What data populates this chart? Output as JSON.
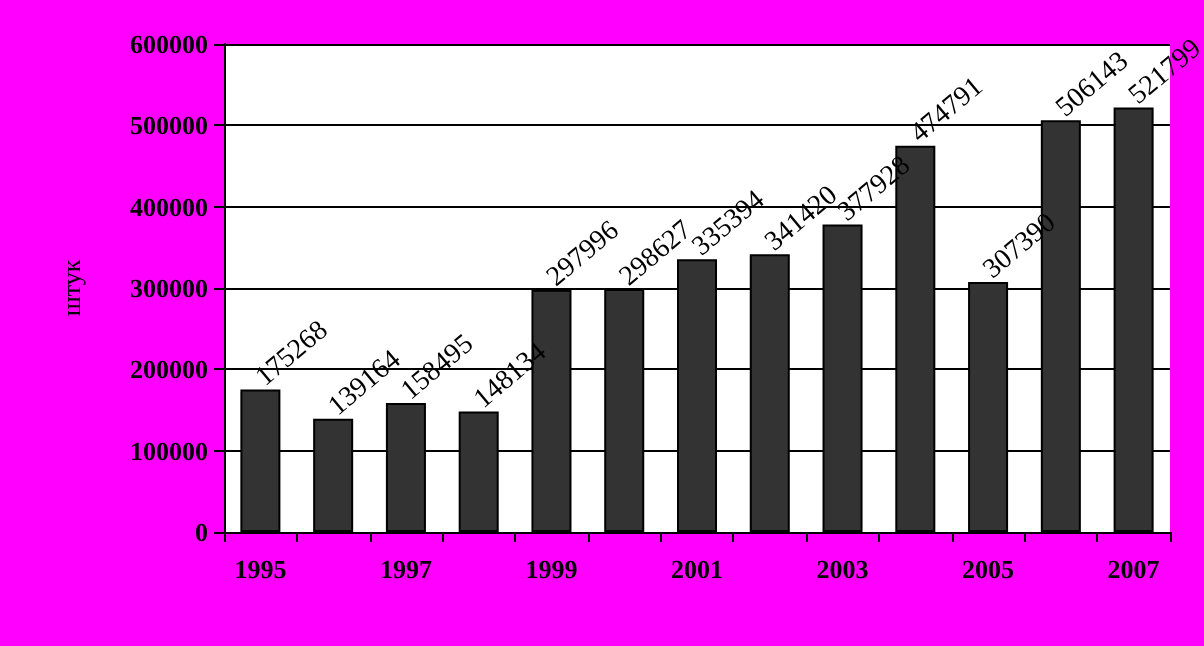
{
  "chart_data": {
    "type": "bar",
    "ylabel": "штук",
    "categories": [
      "1995",
      null,
      "1997",
      null,
      "1999",
      null,
      "2001",
      null,
      "2003",
      null,
      "2005",
      null,
      "2007"
    ],
    "values": [
      175268,
      139164,
      158495,
      148134,
      297996,
      298627,
      335394,
      341420,
      377928,
      474791,
      307390,
      506143,
      521799
    ],
    "color": "#333333",
    "ylim": [
      0,
      600000
    ],
    "yticks": [
      0,
      100000,
      200000,
      300000,
      400000,
      500000,
      600000
    ],
    "grid": "y",
    "data_labels": true
  }
}
